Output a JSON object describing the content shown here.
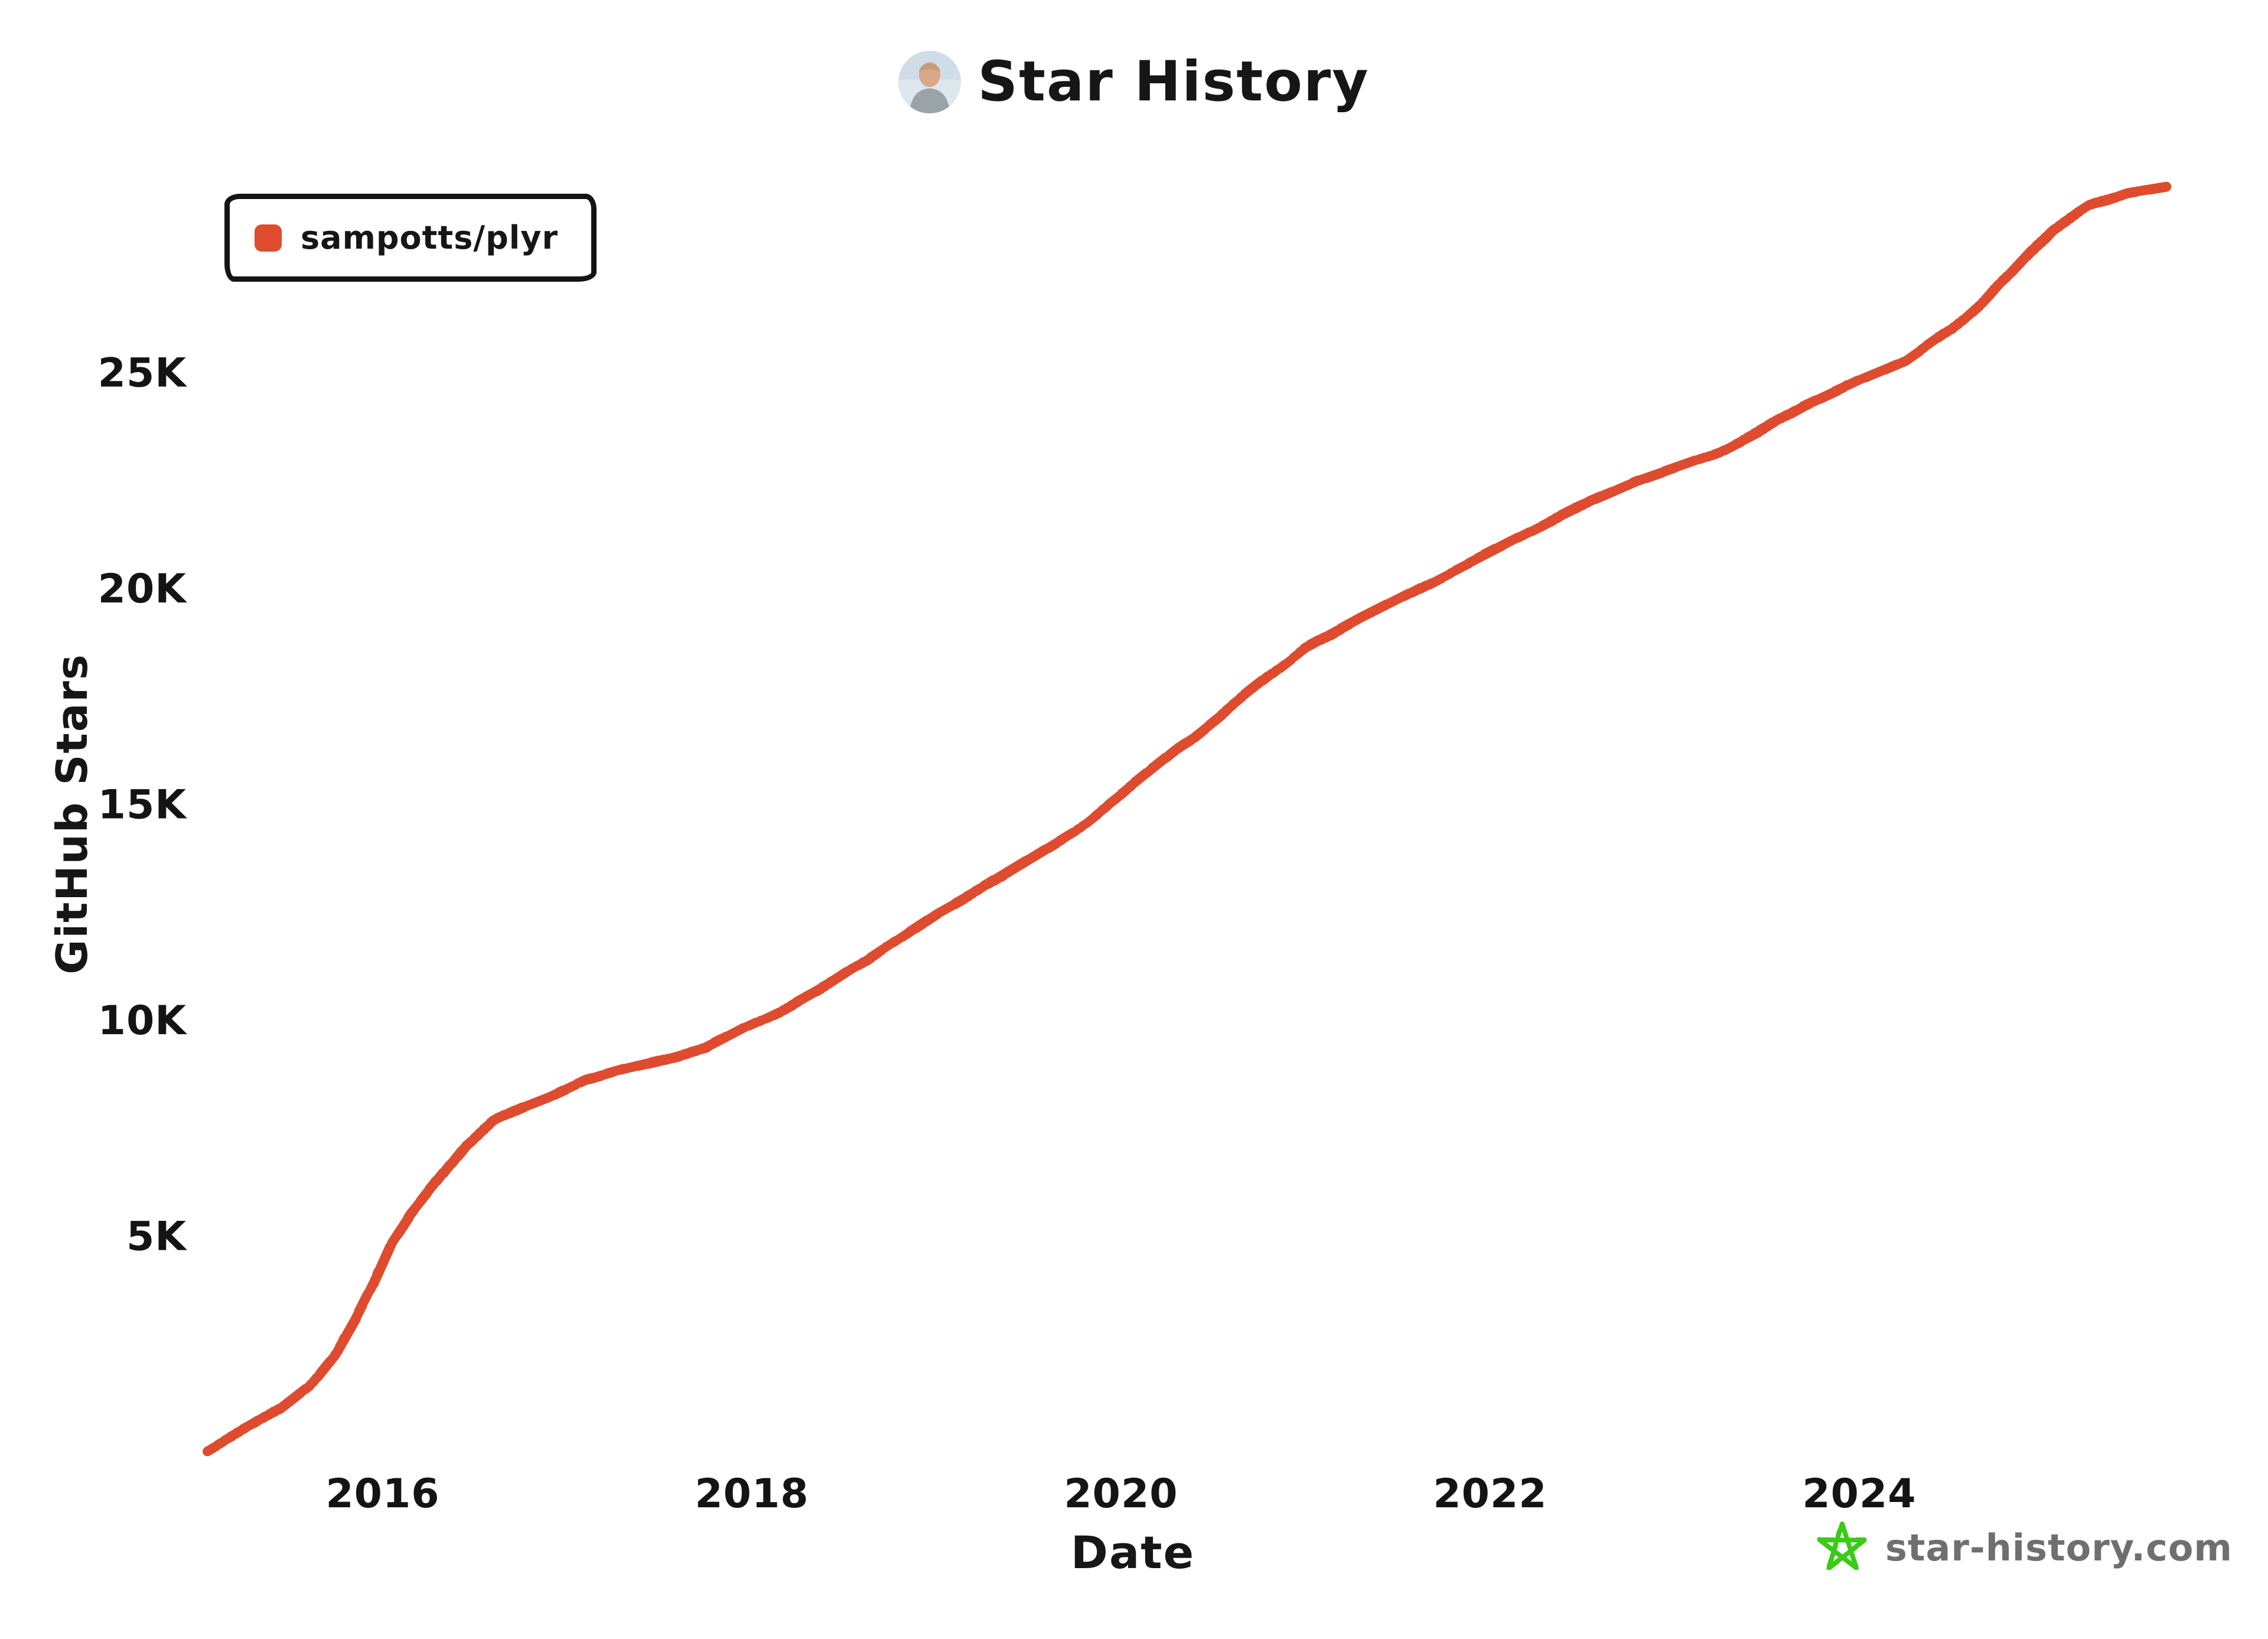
{
  "title": {
    "text": "Star History"
  },
  "legend": {
    "items": [
      {
        "label": "sampotts/plyr",
        "color": "#DE4B2F"
      }
    ]
  },
  "watermark": {
    "text": "star-history.com",
    "star_color": "#3BCB17",
    "text_color": "#6f6f6f"
  },
  "axes": {
    "x_label": "Date",
    "y_label": "GitHub Stars"
  },
  "chart_data": {
    "type": "line",
    "title": "Star History",
    "xlabel": "Date",
    "ylabel": "GitHub Stars",
    "xlim": [
      2015.04,
      2025.9
    ],
    "ylim": [
      0,
      29500
    ],
    "grid": false,
    "legend_position": "top-left",
    "x_ticks": [
      {
        "label": "2016",
        "value": 2016
      },
      {
        "label": "2018",
        "value": 2018
      },
      {
        "label": "2020",
        "value": 2020
      },
      {
        "label": "2022",
        "value": 2022
      },
      {
        "label": "2024",
        "value": 2024
      }
    ],
    "x_minor_ticks": [
      2017,
      2019,
      2021,
      2023,
      2025
    ],
    "y_ticks": [
      {
        "label": "5K",
        "value": 5000
      },
      {
        "label": "10K",
        "value": 10000
      },
      {
        "label": "15K",
        "value": 15000
      },
      {
        "label": "20K",
        "value": 20000
      },
      {
        "label": "25K",
        "value": 25000
      }
    ],
    "y_minor_ticks": [
      2500,
      7500,
      12500,
      17500,
      22500,
      27500
    ],
    "series": [
      {
        "name": "sampotts/plyr",
        "color": "#DE4B2F",
        "points": [
          [
            2015.05,
            0
          ],
          [
            2015.15,
            250
          ],
          [
            2015.3,
            600
          ],
          [
            2015.45,
            1000
          ],
          [
            2015.6,
            1500
          ],
          [
            2015.75,
            2300
          ],
          [
            2015.85,
            3050
          ],
          [
            2015.95,
            3900
          ],
          [
            2016.05,
            4850
          ],
          [
            2016.15,
            5500
          ],
          [
            2016.3,
            6300
          ],
          [
            2016.45,
            7100
          ],
          [
            2016.6,
            7650
          ],
          [
            2016.75,
            7950
          ],
          [
            2016.9,
            8200
          ],
          [
            2017.1,
            8600
          ],
          [
            2017.3,
            8850
          ],
          [
            2017.5,
            9050
          ],
          [
            2017.75,
            9350
          ],
          [
            2017.95,
            9800
          ],
          [
            2018.2,
            10300
          ],
          [
            2018.45,
            10900
          ],
          [
            2018.7,
            11600
          ],
          [
            2019.0,
            12450
          ],
          [
            2019.25,
            13050
          ],
          [
            2019.5,
            13700
          ],
          [
            2019.75,
            14350
          ],
          [
            2020.0,
            15200
          ],
          [
            2020.35,
            16400
          ],
          [
            2020.7,
            17600
          ],
          [
            2021.0,
            18600
          ],
          [
            2021.3,
            19300
          ],
          [
            2021.6,
            19950
          ],
          [
            2021.85,
            20500
          ],
          [
            2022.1,
            21050
          ],
          [
            2022.45,
            21800
          ],
          [
            2022.8,
            22450
          ],
          [
            2023.2,
            23050
          ],
          [
            2023.45,
            23600
          ],
          [
            2023.7,
            24200
          ],
          [
            2024.0,
            24800
          ],
          [
            2024.25,
            25250
          ],
          [
            2024.5,
            26000
          ],
          [
            2024.8,
            27150
          ],
          [
            2025.05,
            28300
          ],
          [
            2025.25,
            28850
          ],
          [
            2025.45,
            29150
          ],
          [
            2025.66,
            29300
          ]
        ]
      }
    ]
  }
}
